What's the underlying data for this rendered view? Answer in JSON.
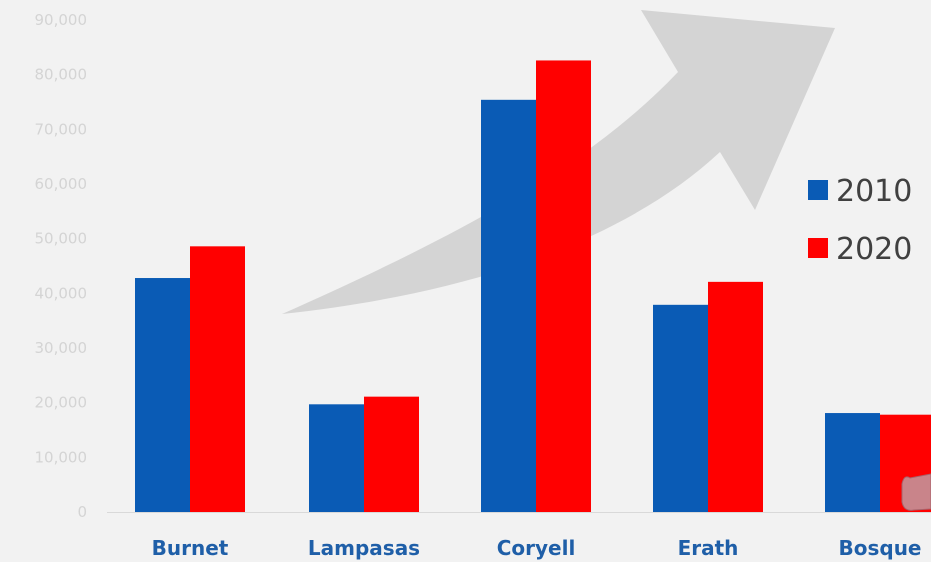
{
  "chart_data": {
    "type": "bar",
    "categories": [
      "Burnet",
      "Lampasas",
      "Coryell",
      "Erath",
      "Bosque"
    ],
    "series": [
      {
        "name": "2010",
        "values": [
          42800,
          19700,
          75400,
          37900,
          18100
        ],
        "color": "#0a5bb5"
      },
      {
        "name": "2020",
        "values": [
          48600,
          21100,
          82600,
          42100,
          17800
        ],
        "color": "#ff0000"
      }
    ],
    "ylim": [
      0,
      90000
    ],
    "yticks": [
      "0",
      "10,000",
      "20,000",
      "30,000",
      "40,000",
      "50,000",
      "60,000",
      "70,000",
      "80,000",
      "90,000"
    ],
    "grid": false,
    "legend_position": "right",
    "title": "",
    "xlabel": "",
    "ylabel": ""
  },
  "decorations": {
    "arrow_color": "#cfcfcf",
    "callout_color": "#c9848a",
    "arrow_icon": "trend-arrow-icon",
    "callout_icon": "speech-callout-icon"
  }
}
